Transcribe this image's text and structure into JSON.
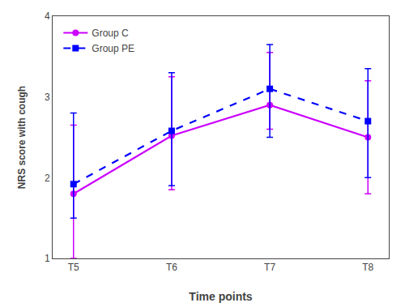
{
  "chart_data": {
    "type": "line",
    "x_label": "Time points",
    "y_label": "NRS score with cough",
    "categories": [
      "T5",
      "T6",
      "T7",
      "T8"
    ],
    "series": [
      {
        "name": "Group C",
        "color": "#CC00FF",
        "marker": "circle",
        "line_style": "solid",
        "values": [
          1.8,
          2.52,
          2.9,
          2.5
        ],
        "error_low": [
          0.8,
          0.67,
          0.3,
          0.7
        ],
        "error_high": [
          0.85,
          0.73,
          0.65,
          0.7
        ]
      },
      {
        "name": "Group PE",
        "color": "#0000FF",
        "marker": "square",
        "line_style": "dashed",
        "values": [
          1.92,
          2.58,
          3.1,
          2.7
        ],
        "error_low": [
          0.42,
          0.68,
          0.6,
          0.7
        ],
        "error_high": [
          0.88,
          0.72,
          0.55,
          0.65
        ]
      }
    ],
    "ylim": [
      1,
      4
    ],
    "yticks": [
      1,
      2,
      3,
      4
    ],
    "grid": false,
    "legend": "upper left"
  }
}
